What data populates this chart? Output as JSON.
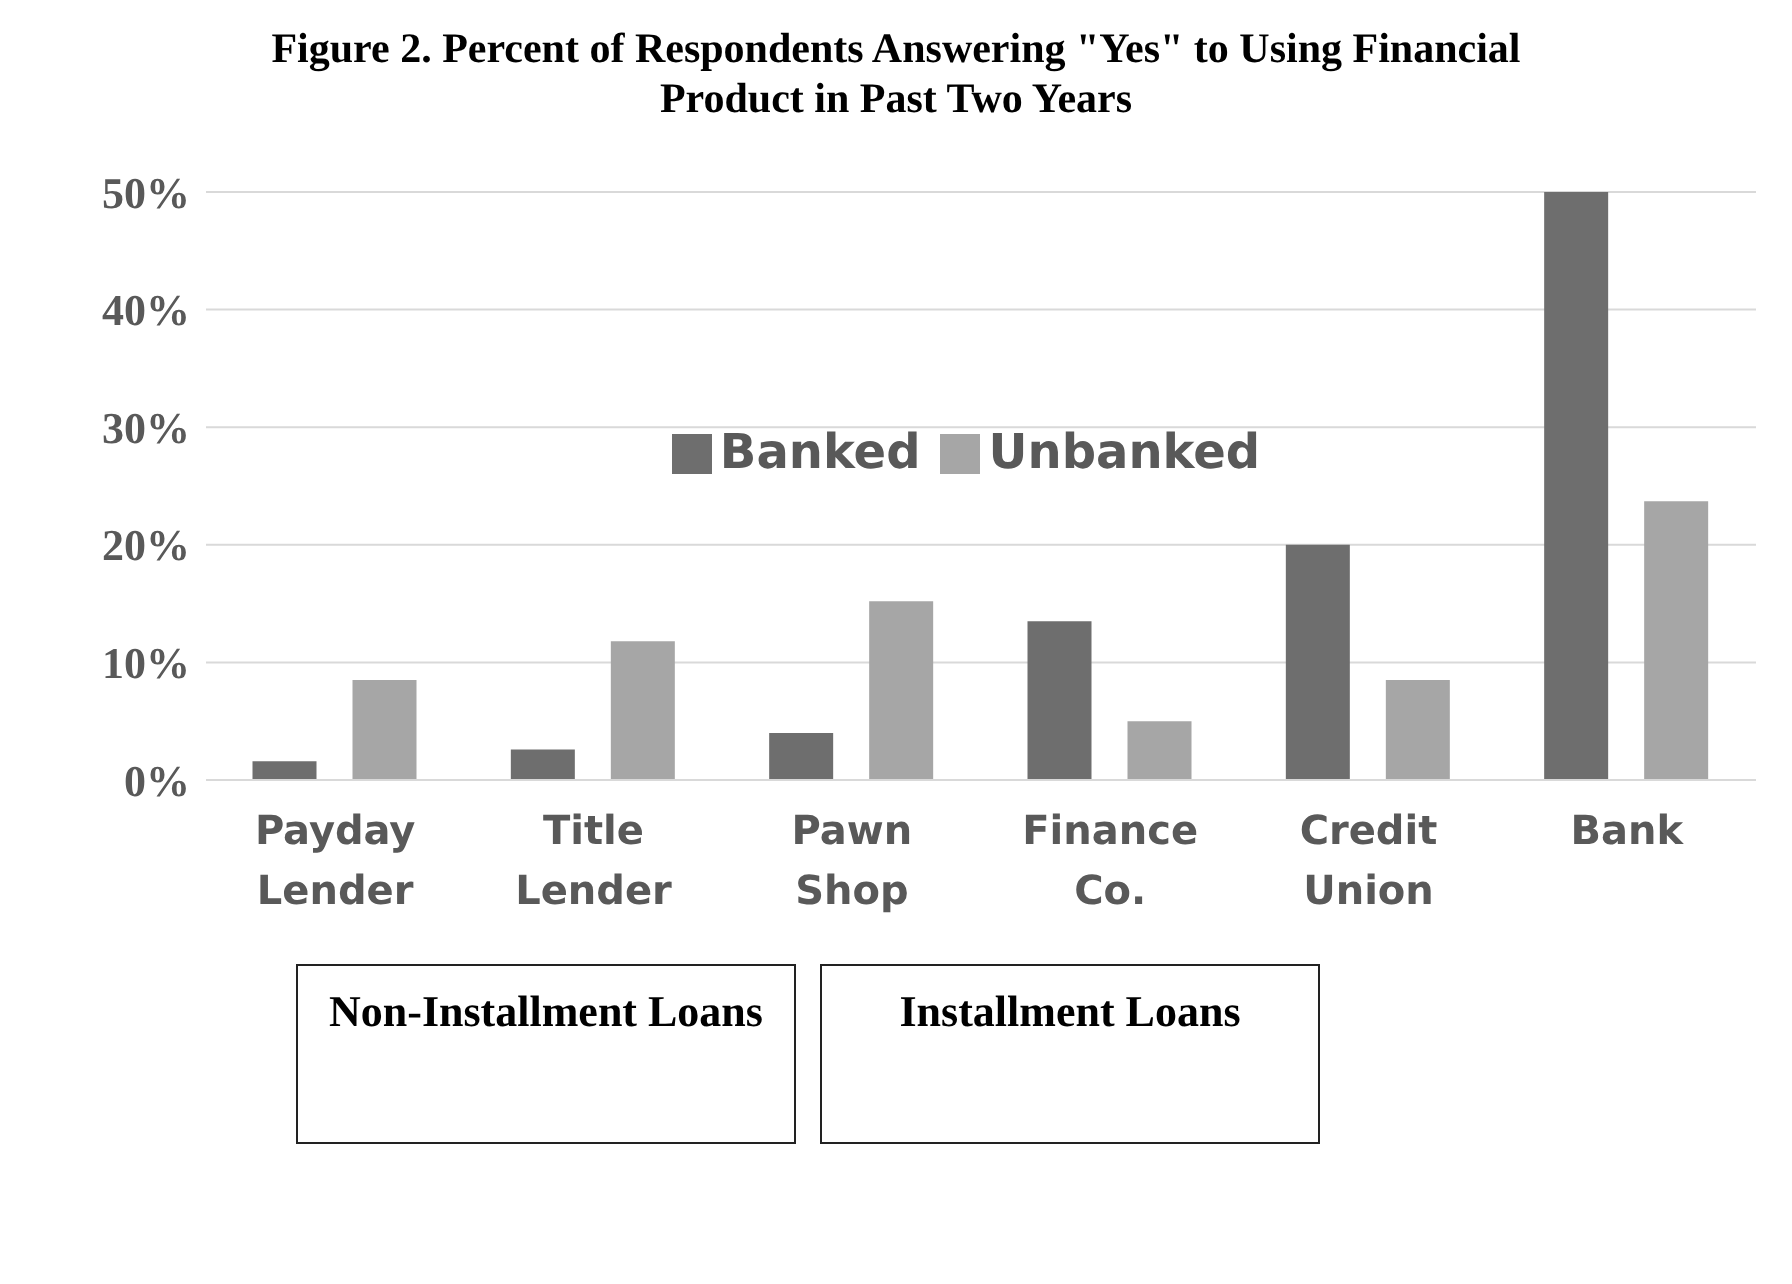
{
  "chart_data": {
    "type": "bar",
    "title": "Figure 2.  Percent of Respondents Answering \"Yes\" to Using Financial Product in Past Two Years",
    "categories": [
      "Payday Lender",
      "Title Lender",
      "Pawn Shop",
      "Finance Co.",
      "Credit Union",
      "Bank"
    ],
    "series": [
      {
        "name": "Banked",
        "color": "#6e6e6e",
        "values": [
          1.6,
          2.6,
          4.0,
          13.5,
          20.0,
          50.0
        ]
      },
      {
        "name": "Unbanked",
        "color": "#a6a6a6",
        "values": [
          8.5,
          11.8,
          15.2,
          5.0,
          8.5,
          23.7
        ]
      }
    ],
    "ylim": [
      0,
      50
    ],
    "yticks": [
      {
        "value": 0,
        "label": "0%"
      },
      {
        "value": 10,
        "label": "10%"
      },
      {
        "value": 20,
        "label": "20%"
      },
      {
        "value": 30,
        "label": "30%"
      },
      {
        "value": 40,
        "label": "40%"
      },
      {
        "value": 50,
        "label": "50%"
      }
    ],
    "grid": "y",
    "legend": "top",
    "annotations": [
      "Non-Installment Loans",
      "Installment Loans"
    ]
  }
}
